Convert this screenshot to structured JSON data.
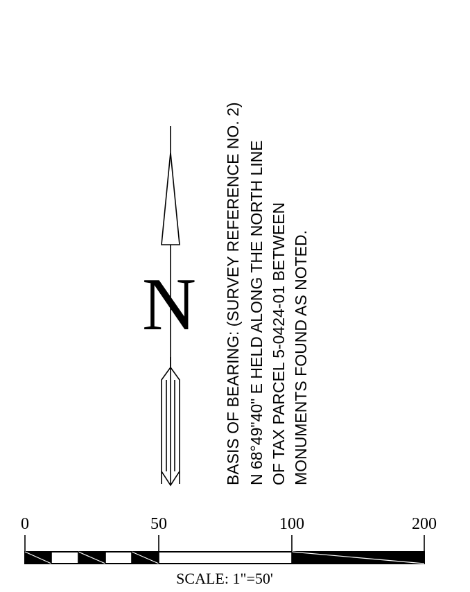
{
  "north_arrow": {
    "letter": "N",
    "icon": "north-arrow-icon"
  },
  "basis_of_bearing": {
    "lines": [
      "BASIS OF BEARING: (SURVEY REFERENCE NO. 2)",
      "N 68°49\"40\" E HELD ALONG THE NORTH LINE",
      "OF TAX PARCEL 5-0424-01 BETWEEN",
      "MONUMENTS FOUND AS NOTED."
    ]
  },
  "scale_bar": {
    "tick_labels": [
      "0",
      "50",
      "100",
      "200"
    ],
    "caption": "SCALE: 1\"=50'"
  }
}
